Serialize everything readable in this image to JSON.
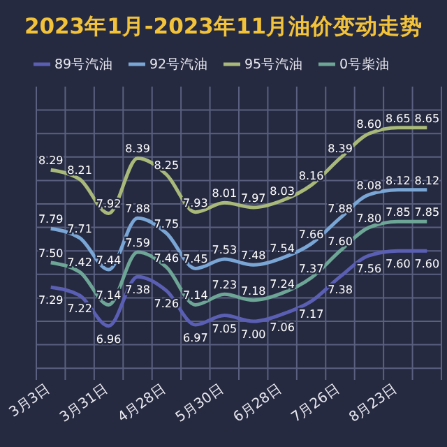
{
  "chart_data": {
    "type": "line",
    "title": "2023年1月-2023年11月油价变动走势",
    "categories": [
      "3月3日",
      null,
      "3月31日",
      null,
      "4月28日",
      null,
      "5月30日",
      null,
      "6月28日",
      null,
      "7月26日",
      null,
      "8月23日",
      null
    ],
    "series": [
      {
        "name": "89号汽油",
        "color": "#5b5fb4",
        "values": [
          7.29,
          7.22,
          6.96,
          7.38,
          7.26,
          6.97,
          7.05,
          7.0,
          7.06,
          7.17,
          7.38,
          7.56,
          7.6,
          7.6
        ],
        "value_labels": [
          "7.29",
          "7.22",
          "6.96",
          "7.38",
          "7.26",
          "6.97",
          "7.05",
          "7.00",
          "7.06",
          "7.17",
          "7.38",
          "7.56",
          "7.60",
          "7.60"
        ]
      },
      {
        "name": "92号汽油",
        "color": "#7aa6d6",
        "values": [
          7.79,
          7.71,
          7.44,
          7.88,
          7.75,
          7.45,
          7.53,
          7.48,
          7.54,
          7.66,
          7.88,
          8.08,
          8.12,
          8.12
        ],
        "value_labels": [
          "7.79",
          "7.71",
          "7.44",
          "7.88",
          "7.75",
          "7.45",
          "7.53",
          "7.48",
          "7.54",
          "7.66",
          "7.88",
          "8.08",
          "8.12",
          "8.12"
        ]
      },
      {
        "name": "95号汽油",
        "color": "#a9b97a",
        "values": [
          8.29,
          8.21,
          7.92,
          8.39,
          8.25,
          7.93,
          8.01,
          7.97,
          8.03,
          8.16,
          8.39,
          8.6,
          8.65,
          8.65
        ],
        "value_labels": [
          "8.29",
          "8.21",
          "7.92",
          "8.39",
          "8.25",
          "7.93",
          "8.01",
          "7.97",
          "8.03",
          "8.16",
          "8.39",
          "8.60",
          "8.65",
          "8.65"
        ]
      },
      {
        "name": "0号柴油",
        "color": "#6da596",
        "values": [
          7.5,
          7.42,
          7.14,
          7.59,
          7.46,
          7.14,
          7.23,
          7.18,
          7.24,
          7.37,
          7.6,
          7.8,
          7.85,
          7.85
        ],
        "value_labels": [
          "7.50",
          "7.42",
          "7.14",
          "7.59",
          "7.46",
          "7.14",
          "7.23",
          "7.18",
          "7.24",
          "7.37",
          "7.60",
          "7.80",
          "7.85",
          "7.85"
        ]
      }
    ],
    "ylim": [
      6.5,
      9.0
    ],
    "yticks": [
      {
        "value": 6.6,
        "label": null
      },
      {
        "value": 6.8,
        "label": null
      },
      {
        "value": 7.0,
        "label": null
      },
      {
        "value": 7.2,
        "label": null
      },
      {
        "value": 7.4,
        "label": null
      },
      {
        "value": 7.6,
        "label": null
      },
      {
        "value": 7.8,
        "label": null
      },
      {
        "value": 8.0,
        "label": null
      },
      {
        "value": 8.2,
        "label": null
      },
      {
        "value": 8.4,
        "label": null
      },
      {
        "value": 8.6,
        "label": null
      },
      {
        "value": 8.8,
        "label": null
      }
    ],
    "tick_labels": "x",
    "grid": true,
    "legend": "top",
    "marker": "none",
    "line_style": "solid"
  }
}
